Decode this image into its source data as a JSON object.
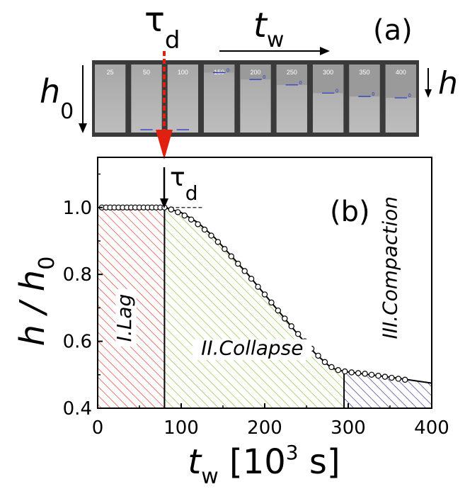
{
  "panel_a": {
    "label": "(a)",
    "tau_symbol": "τ",
    "tau_sub": "d",
    "tw_symbol": "t",
    "tw_sub": "w",
    "h0_symbol": "h",
    "h0_sub": "0",
    "h_symbol": "h",
    "frames": [
      {
        "time": "25",
        "sediment": 0.0,
        "marker": ""
      },
      {
        "time": "50",
        "sediment": 0.0,
        "marker": ""
      },
      {
        "time": "100",
        "sediment": 0.0,
        "marker": ""
      },
      {
        "time": "150",
        "sediment": 0.12,
        "marker": "0"
      },
      {
        "time": "200",
        "sediment": 0.22,
        "marker": "0"
      },
      {
        "time": "250",
        "sediment": 0.3,
        "marker": "0"
      },
      {
        "time": "300",
        "sediment": 0.42,
        "marker": "0"
      },
      {
        "time": "350",
        "sediment": 0.47,
        "marker": "0"
      },
      {
        "time": "400",
        "sediment": 0.49,
        "marker": "0"
      }
    ],
    "colors": {
      "frame": "#3a3a3a",
      "gel": "#b9b9b9",
      "marker": "#2233cc",
      "arrow": "#e02010"
    }
  },
  "chart_data": {
    "type": "scatter",
    "label": "(b)",
    "xlabel_symbol": "t",
    "xlabel_sub": "w",
    "xlabel_unit_pre": " [10",
    "xlabel_unit_exp": "3",
    "xlabel_unit_post": " s]",
    "ylabel_text": "h / h",
    "ylabel_sub": "0",
    "xlim": [
      0,
      400
    ],
    "ylim": [
      0.4,
      1.15
    ],
    "xticks": [
      0,
      100,
      200,
      300,
      400
    ],
    "yticks": [
      0.4,
      0.6,
      0.8,
      1.0
    ],
    "ytick_labels": [
      "0.4",
      "0.6",
      "0.8",
      "1.0"
    ],
    "tau_d": 80,
    "tau_symbol": "τ",
    "tau_sub": "d",
    "regions": [
      {
        "name": "I.Lag",
        "x_start": 0,
        "x_end": 80,
        "color": "#e03020"
      },
      {
        "name": "II.Collapse",
        "x_start": 80,
        "x_end": 295,
        "color": "#7cc030"
      },
      {
        "name": "III.Compaction",
        "x_start": 295,
        "x_end": 400,
        "color": "#2a2a9a"
      }
    ],
    "points": {
      "x": [
        5,
        10,
        15,
        20,
        25,
        30,
        35,
        40,
        45,
        50,
        55,
        60,
        65,
        70,
        75,
        80,
        88,
        96,
        104,
        112,
        120,
        128,
        136,
        144,
        152,
        160,
        168,
        176,
        184,
        192,
        200,
        208,
        216,
        224,
        232,
        240,
        248,
        256,
        264,
        272,
        280,
        288,
        296,
        304,
        312,
        320,
        328,
        336,
        344,
        352,
        360,
        368
      ],
      "y": [
        1.0,
        1.0,
        1.0,
        1.0,
        1.0,
        1.0,
        1.0,
        1.0,
        1.0,
        1.0,
        1.0,
        1.0,
        1.0,
        1.0,
        1.0,
        1.0,
        0.994,
        0.986,
        0.976,
        0.964,
        0.95,
        0.934,
        0.916,
        0.897,
        0.876,
        0.854,
        0.832,
        0.81,
        0.787,
        0.763,
        0.74,
        0.716,
        0.692,
        0.668,
        0.645,
        0.622,
        0.6,
        0.578,
        0.557,
        0.538,
        0.523,
        0.514,
        0.51,
        0.507,
        0.505,
        0.503,
        0.5,
        0.497,
        0.494,
        0.491,
        0.488,
        0.485
      ]
    },
    "fit": {
      "x": [
        80,
        100,
        120,
        140,
        160,
        180,
        200,
        220,
        240,
        260,
        280,
        295,
        320,
        350,
        400
      ],
      "y": [
        1.0,
        0.985,
        0.955,
        0.91,
        0.855,
        0.8,
        0.74,
        0.68,
        0.62,
        0.565,
        0.52,
        0.51,
        0.502,
        0.493,
        0.475
      ]
    }
  }
}
